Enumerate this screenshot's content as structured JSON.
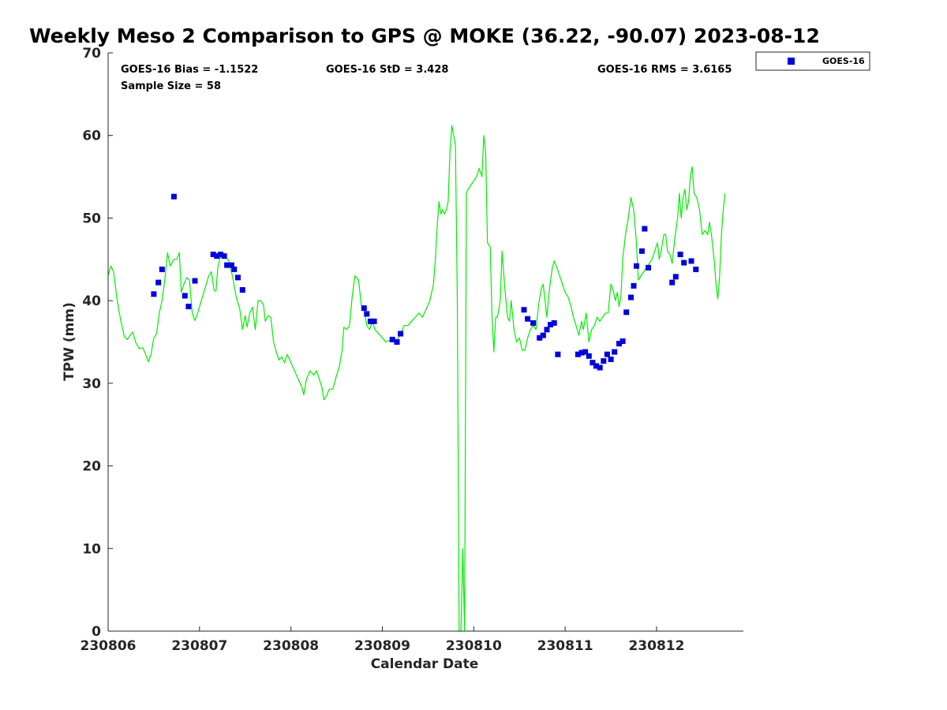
{
  "chart_data": {
    "type": "scatter",
    "title": "Weekly Meso 2 Comparison to GPS @ MOKE (36.22, -90.07) 2023-08-12",
    "xlabel": "Calendar Date",
    "ylabel": "TPW (mm)",
    "xlim": [
      0,
      6.95
    ],
    "ylim": [
      0,
      70
    ],
    "x_tick_values": [
      0,
      1,
      2,
      3,
      4,
      5,
      6
    ],
    "x_tick_labels": [
      "230806",
      "230807",
      "230808",
      "230809",
      "230810",
      "230811",
      "230812"
    ],
    "y_ticks": [
      0,
      10,
      20,
      30,
      40,
      50,
      60,
      70
    ],
    "grid": false,
    "legend_position": "outside-top-right",
    "stats": {
      "bias": "GOES-16 Bias = -1.1522",
      "std": "GOES-16 StD = 3.428",
      "rms": "GOES-16 RMS = 3.6165",
      "sample": "Sample Size = 58"
    },
    "series": [
      {
        "name": "GPS",
        "style": "line",
        "color": "#00ee00",
        "show_in_legend": false,
        "points": [
          [
            0.0,
            43.0
          ],
          [
            0.03,
            44.2
          ],
          [
            0.06,
            43.5
          ],
          [
            0.1,
            40.0
          ],
          [
            0.14,
            37.5
          ],
          [
            0.18,
            35.6
          ],
          [
            0.21,
            35.3
          ],
          [
            0.24,
            35.8
          ],
          [
            0.27,
            36.2
          ],
          [
            0.3,
            35.0
          ],
          [
            0.34,
            34.2
          ],
          [
            0.38,
            34.3
          ],
          [
            0.41,
            33.5
          ],
          [
            0.44,
            32.6
          ],
          [
            0.47,
            33.5
          ],
          [
            0.5,
            35.5
          ],
          [
            0.53,
            36.0
          ],
          [
            0.56,
            38.5
          ],
          [
            0.59,
            40.0
          ],
          [
            0.62,
            42.5
          ],
          [
            0.65,
            45.8
          ],
          [
            0.68,
            44.2
          ],
          [
            0.72,
            45.0
          ],
          [
            0.75,
            45.0
          ],
          [
            0.78,
            45.8
          ],
          [
            0.8,
            41.0
          ],
          [
            0.83,
            42.0
          ],
          [
            0.86,
            42.8
          ],
          [
            0.89,
            42.5
          ],
          [
            0.92,
            38.5
          ],
          [
            0.95,
            37.6
          ],
          [
            0.98,
            38.5
          ],
          [
            1.02,
            40.0
          ],
          [
            1.06,
            41.5
          ],
          [
            1.1,
            43.0
          ],
          [
            1.13,
            43.5
          ],
          [
            1.16,
            41.2
          ],
          [
            1.18,
            41.2
          ],
          [
            1.2,
            44.0
          ],
          [
            1.22,
            45.0
          ],
          [
            1.24,
            45.8
          ],
          [
            1.28,
            45.5
          ],
          [
            1.32,
            44.8
          ],
          [
            1.36,
            43.0
          ],
          [
            1.4,
            40.5
          ],
          [
            1.44,
            39.0
          ],
          [
            1.47,
            36.5
          ],
          [
            1.5,
            38.2
          ],
          [
            1.52,
            36.8
          ],
          [
            1.55,
            38.5
          ],
          [
            1.58,
            39.2
          ],
          [
            1.61,
            36.5
          ],
          [
            1.64,
            40.0
          ],
          [
            1.67,
            40.0
          ],
          [
            1.7,
            39.5
          ],
          [
            1.72,
            37.5
          ],
          [
            1.75,
            38.2
          ],
          [
            1.78,
            38.0
          ],
          [
            1.81,
            35.0
          ],
          [
            1.84,
            33.8
          ],
          [
            1.87,
            32.8
          ],
          [
            1.9,
            33.2
          ],
          [
            1.93,
            32.5
          ],
          [
            1.96,
            33.5
          ],
          [
            2.0,
            32.5
          ],
          [
            2.04,
            31.5
          ],
          [
            2.08,
            30.5
          ],
          [
            2.12,
            29.5
          ],
          [
            2.14,
            28.6
          ],
          [
            2.17,
            30.5
          ],
          [
            2.21,
            31.5
          ],
          [
            2.25,
            31.0
          ],
          [
            2.28,
            31.5
          ],
          [
            2.31,
            30.5
          ],
          [
            2.34,
            29.5
          ],
          [
            2.36,
            28.0
          ],
          [
            2.39,
            28.5
          ],
          [
            2.42,
            29.3
          ],
          [
            2.46,
            29.3
          ],
          [
            2.5,
            31.0
          ],
          [
            2.53,
            32.0
          ],
          [
            2.56,
            34.0
          ],
          [
            2.58,
            36.8
          ],
          [
            2.61,
            36.5
          ],
          [
            2.64,
            37.0
          ],
          [
            2.67,
            40.5
          ],
          [
            2.7,
            43.0
          ],
          [
            2.74,
            42.5
          ],
          [
            2.77,
            39.5
          ],
          [
            2.8,
            39.0
          ],
          [
            2.83,
            37.0
          ],
          [
            2.86,
            36.5
          ],
          [
            2.89,
            37.5
          ],
          [
            2.92,
            36.5
          ],
          [
            2.96,
            36.0
          ],
          [
            3.0,
            35.5
          ],
          [
            3.04,
            35.0
          ],
          [
            3.08,
            35.2
          ],
          [
            3.12,
            35.5
          ],
          [
            3.16,
            35.2
          ],
          [
            3.2,
            36.0
          ],
          [
            3.24,
            37.0
          ],
          [
            3.28,
            37.0
          ],
          [
            3.32,
            37.5
          ],
          [
            3.36,
            38.0
          ],
          [
            3.4,
            38.5
          ],
          [
            3.44,
            38.0
          ],
          [
            3.48,
            39.0
          ],
          [
            3.52,
            40.0
          ],
          [
            3.56,
            42.0
          ],
          [
            3.58,
            45.0
          ],
          [
            3.6,
            49.0
          ],
          [
            3.62,
            52.0
          ],
          [
            3.64,
            50.5
          ],
          [
            3.66,
            51.0
          ],
          [
            3.68,
            50.5
          ],
          [
            3.7,
            51.0
          ],
          [
            3.72,
            52.0
          ],
          [
            3.74,
            58.0
          ],
          [
            3.76,
            61.2
          ],
          [
            3.78,
            60.0
          ],
          [
            3.8,
            59.0
          ],
          [
            3.82,
            40.0
          ],
          [
            3.84,
            0.0
          ],
          [
            3.86,
            0.0
          ],
          [
            3.88,
            10.0
          ],
          [
            3.9,
            0.0
          ],
          [
            3.92,
            53.0
          ],
          [
            3.94,
            53.5
          ],
          [
            3.97,
            54.0
          ],
          [
            4.0,
            54.5
          ],
          [
            4.03,
            55.0
          ],
          [
            4.06,
            56.0
          ],
          [
            4.09,
            55.0
          ],
          [
            4.11,
            60.0
          ],
          [
            4.13,
            58.0
          ],
          [
            4.15,
            47.0
          ],
          [
            4.18,
            46.5
          ],
          [
            4.2,
            38.0
          ],
          [
            4.22,
            33.8
          ],
          [
            4.24,
            38.0
          ],
          [
            4.26,
            38.0
          ],
          [
            4.29,
            40.0
          ],
          [
            4.31,
            46.0
          ],
          [
            4.34,
            41.5
          ],
          [
            4.37,
            38.0
          ],
          [
            4.39,
            37.5
          ],
          [
            4.41,
            40.0
          ],
          [
            4.44,
            36.5
          ],
          [
            4.47,
            35.0
          ],
          [
            4.5,
            35.5
          ],
          [
            4.53,
            34.0
          ],
          [
            4.56,
            34.0
          ],
          [
            4.59,
            35.5
          ],
          [
            4.62,
            36.5
          ],
          [
            4.65,
            37.0
          ],
          [
            4.68,
            36.5
          ],
          [
            4.71,
            39.5
          ],
          [
            4.74,
            41.5
          ],
          [
            4.76,
            42.0
          ],
          [
            4.78,
            40.0
          ],
          [
            4.8,
            38.0
          ],
          [
            4.83,
            41.5
          ],
          [
            4.86,
            44.0
          ],
          [
            4.88,
            44.8
          ],
          [
            4.91,
            44.0
          ],
          [
            4.94,
            43.0
          ],
          [
            4.97,
            42.0
          ],
          [
            5.0,
            41.0
          ],
          [
            5.03,
            40.5
          ],
          [
            5.06,
            39.5
          ],
          [
            5.09,
            38.0
          ],
          [
            5.12,
            37.0
          ],
          [
            5.15,
            35.8
          ],
          [
            5.18,
            37.5
          ],
          [
            5.2,
            36.5
          ],
          [
            5.23,
            38.5
          ],
          [
            5.26,
            35.0
          ],
          [
            5.29,
            36.5
          ],
          [
            5.32,
            37.0
          ],
          [
            5.35,
            38.0
          ],
          [
            5.38,
            37.5
          ],
          [
            5.41,
            38.0
          ],
          [
            5.44,
            38.5
          ],
          [
            5.47,
            38.5
          ],
          [
            5.5,
            42.0
          ],
          [
            5.52,
            41.5
          ],
          [
            5.55,
            40.0
          ],
          [
            5.57,
            41.0
          ],
          [
            5.59,
            39.3
          ],
          [
            5.61,
            40.5
          ],
          [
            5.63,
            45.0
          ],
          [
            5.66,
            48.0
          ],
          [
            5.69,
            50.0
          ],
          [
            5.72,
            52.5
          ],
          [
            5.75,
            51.0
          ],
          [
            5.78,
            47.0
          ],
          [
            5.8,
            42.5
          ],
          [
            5.83,
            43.0
          ],
          [
            5.86,
            43.5
          ],
          [
            5.89,
            44.0
          ],
          [
            5.92,
            44.5
          ],
          [
            5.95,
            45.0
          ],
          [
            5.98,
            46.0
          ],
          [
            6.01,
            47.0
          ],
          [
            6.03,
            45.0
          ],
          [
            6.05,
            46.0
          ],
          [
            6.08,
            48.0
          ],
          [
            6.1,
            48.0
          ],
          [
            6.12,
            46.0
          ],
          [
            6.15,
            45.5
          ],
          [
            6.17,
            44.5
          ],
          [
            6.2,
            47.5
          ],
          [
            6.23,
            50.0
          ],
          [
            6.25,
            53.0
          ],
          [
            6.27,
            50.0
          ],
          [
            6.29,
            52.5
          ],
          [
            6.31,
            53.5
          ],
          [
            6.33,
            51.0
          ],
          [
            6.35,
            52.0
          ],
          [
            6.37,
            55.0
          ],
          [
            6.39,
            56.2
          ],
          [
            6.41,
            53.0
          ],
          [
            6.44,
            52.5
          ],
          [
            6.47,
            51.0
          ],
          [
            6.5,
            48.0
          ],
          [
            6.53,
            48.5
          ],
          [
            6.56,
            48.0
          ],
          [
            6.58,
            49.5
          ],
          [
            6.6,
            48.0
          ],
          [
            6.63,
            45.0
          ],
          [
            6.65,
            42.0
          ],
          [
            6.67,
            40.2
          ],
          [
            6.69,
            43.0
          ],
          [
            6.71,
            48.0
          ],
          [
            6.73,
            51.0
          ],
          [
            6.75,
            53.0
          ]
        ]
      },
      {
        "name": "GOES-16",
        "style": "marker",
        "marker": "square",
        "color": "#0000dd",
        "points": [
          [
            0.5,
            40.8
          ],
          [
            0.55,
            42.2
          ],
          [
            0.59,
            43.8
          ],
          [
            0.72,
            52.6
          ],
          [
            0.84,
            40.6
          ],
          [
            0.88,
            39.3
          ],
          [
            0.95,
            42.4
          ],
          [
            1.15,
            45.6
          ],
          [
            1.19,
            45.4
          ],
          [
            1.23,
            45.6
          ],
          [
            1.27,
            45.4
          ],
          [
            1.3,
            44.3
          ],
          [
            1.35,
            44.3
          ],
          [
            1.38,
            43.8
          ],
          [
            1.42,
            42.8
          ],
          [
            1.47,
            41.3
          ],
          [
            2.8,
            39.1
          ],
          [
            2.83,
            38.4
          ],
          [
            2.87,
            37.5
          ],
          [
            2.91,
            37.5
          ],
          [
            3.11,
            35.3
          ],
          [
            3.16,
            35.0
          ],
          [
            3.2,
            36.0
          ],
          [
            4.55,
            38.9
          ],
          [
            4.59,
            37.8
          ],
          [
            4.65,
            37.3
          ],
          [
            4.72,
            35.5
          ],
          [
            4.76,
            35.8
          ],
          [
            4.8,
            36.5
          ],
          [
            4.84,
            37.1
          ],
          [
            4.88,
            37.3
          ],
          [
            4.92,
            33.5
          ],
          [
            5.14,
            33.5
          ],
          [
            5.18,
            33.7
          ],
          [
            5.22,
            33.8
          ],
          [
            5.26,
            33.3
          ],
          [
            5.3,
            32.5
          ],
          [
            5.34,
            32.1
          ],
          [
            5.38,
            31.9
          ],
          [
            5.42,
            32.7
          ],
          [
            5.46,
            33.5
          ],
          [
            5.5,
            32.9
          ],
          [
            5.54,
            33.8
          ],
          [
            5.59,
            34.8
          ],
          [
            5.63,
            35.1
          ],
          [
            5.67,
            38.6
          ],
          [
            5.72,
            40.4
          ],
          [
            5.75,
            41.8
          ],
          [
            5.78,
            44.2
          ],
          [
            5.84,
            46.0
          ],
          [
            5.87,
            48.7
          ],
          [
            5.91,
            44.0
          ],
          [
            6.17,
            42.2
          ],
          [
            6.21,
            42.9
          ],
          [
            6.26,
            45.6
          ],
          [
            6.3,
            44.6
          ],
          [
            6.38,
            44.8
          ],
          [
            6.43,
            43.8
          ]
        ]
      }
    ]
  }
}
